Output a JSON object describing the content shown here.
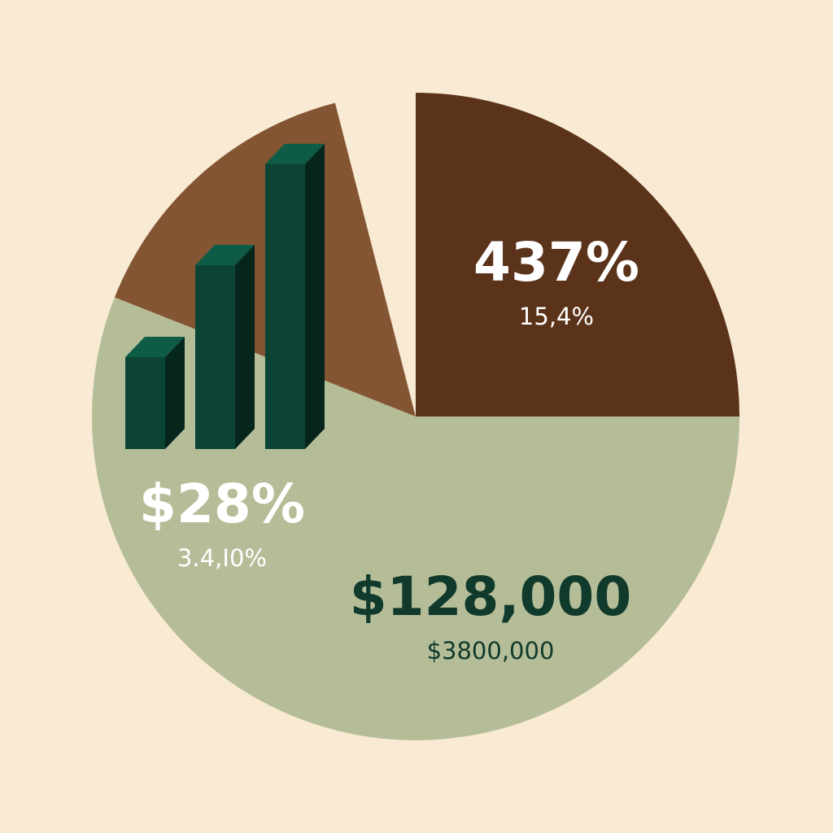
{
  "colors": {
    "background": "#f9ead3",
    "bar_front": "#0b4434",
    "bar_side": "#06251c",
    "bar_top": "#0e5c45"
  },
  "chart_data": [
    {
      "type": "pie",
      "slices": [
        {
          "value": 25,
          "label": "437%",
          "sublabel": "15,4%",
          "color": "#5b331b",
          "text_color": "#ffffff"
        },
        {
          "value": 56,
          "label": "$128,000",
          "sublabel": "$3800,000",
          "color": "#b5bd98",
          "text_color": "#0f3a2c"
        },
        {
          "value": 15,
          "label": "$28%",
          "sublabel": "3.4,I0%",
          "color": "#835533",
          "text_color": "#ffffff"
        },
        {
          "value": 4,
          "label": "",
          "sublabel": "",
          "color": "#f9ead3",
          "text_color": "#ffffff"
        }
      ]
    },
    {
      "type": "bar",
      "categories": [
        "",
        "",
        ""
      ],
      "values": [
        1,
        2,
        3.1
      ]
    }
  ]
}
